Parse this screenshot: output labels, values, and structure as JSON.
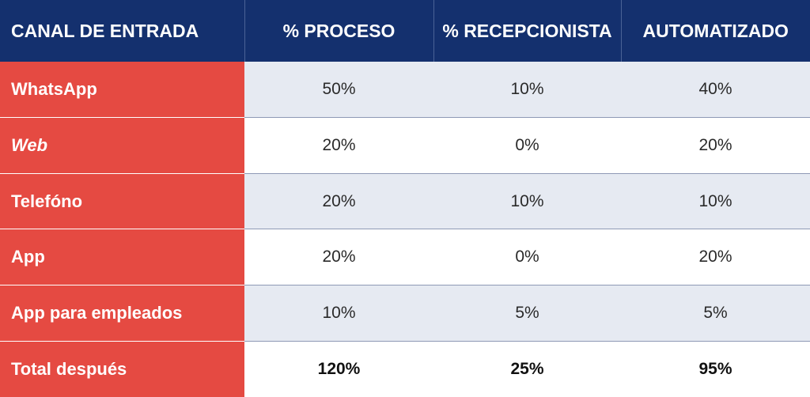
{
  "headers": [
    "CANAL DE ENTRADA",
    "% PROCESO",
    "% RECEPCIONISTA",
    "AUTOMATIZADO"
  ],
  "rows": [
    {
      "channel": "WhatsApp",
      "proceso": "50%",
      "recepcionista": "10%",
      "automatizado": "40%"
    },
    {
      "channel": "Web",
      "proceso": "20%",
      "recepcionista": "0%",
      "automatizado": "20%"
    },
    {
      "channel": "Telefóno",
      "proceso": "20%",
      "recepcionista": "10%",
      "automatizado": "10%"
    },
    {
      "channel": "App",
      "proceso": "20%",
      "recepcionista": "0%",
      "automatizado": "20%"
    },
    {
      "channel": "App para empleados",
      "proceso": "10%",
      "recepcionista": "5%",
      "automatizado": "5%"
    },
    {
      "channel": "Total después",
      "proceso": "120%",
      "recepcionista": "25%",
      "automatizado": "95%"
    }
  ],
  "colors": {
    "header_bg": "#14306e",
    "label_bg": "#e54a42",
    "stripe_bg": "#e6eaf2"
  }
}
